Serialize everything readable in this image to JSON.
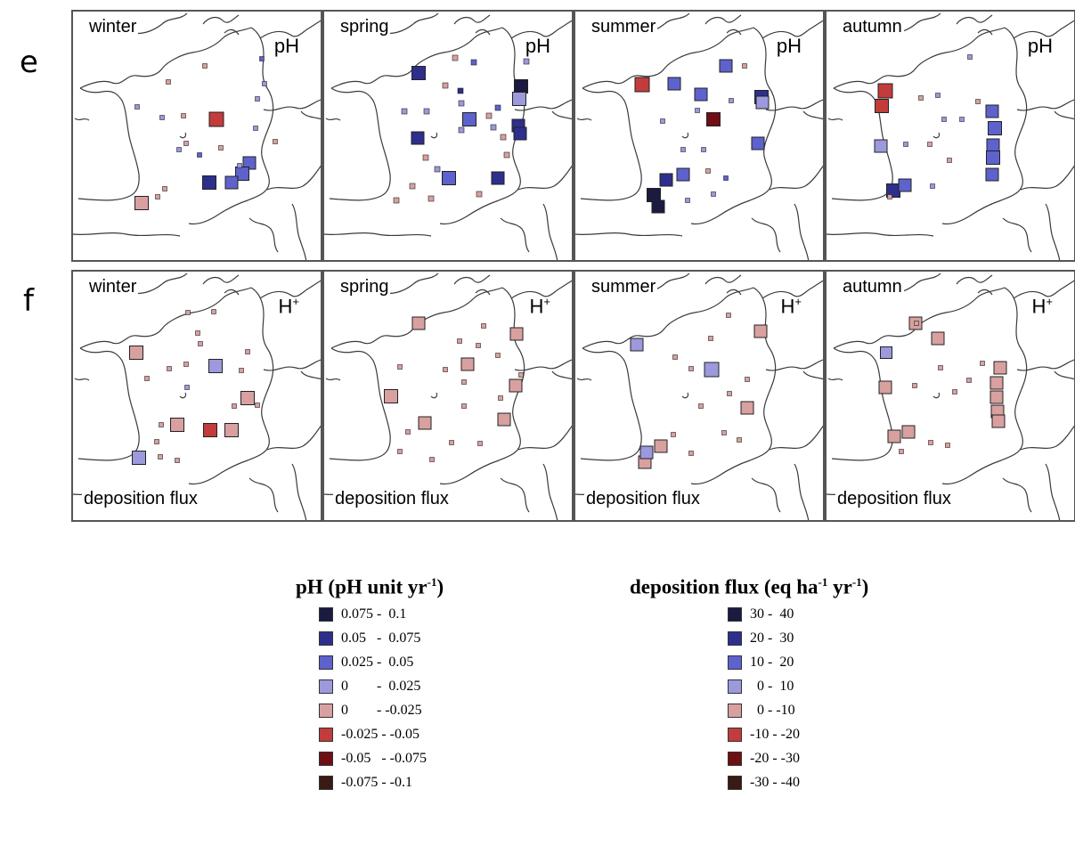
{
  "rows": [
    {
      "id": "e",
      "label": "e",
      "parameter": "pH",
      "parameter_sup": "",
      "footer": ""
    },
    {
      "id": "f",
      "label": "f",
      "parameter": "H",
      "parameter_sup": "+",
      "footer": "deposition flux"
    }
  ],
  "seasons": [
    "winter",
    "spring",
    "summer",
    "autumn"
  ],
  "colors": {
    "c0": "#1b1a40",
    "c1": "#2e2f8c",
    "c2": "#5d62cc",
    "c3": "#9c99dc",
    "c4": "#d9a0a0",
    "c5": "#c23c3c",
    "c6": "#6e0f14",
    "c7": "#3a1a14",
    "panel_border": "#555555",
    "coast": "#3a3a3a"
  },
  "legends": [
    {
      "title_pre": "pH (pH unit yr",
      "title_sup": "-1",
      "title_post": ")",
      "items": [
        "0.075 -  0.1",
        "0.05   -  0.075",
        "0.025 -  0.05",
        "0        -  0.025",
        "0        - -0.025",
        "-0.025 - -0.05",
        "-0.05   - -0.075",
        "-0.075 - -0.1"
      ]
    },
    {
      "title_pre": "deposition flux (eq ha",
      "title_sup": "-1",
      "title_mid": " yr",
      "title_sup2": "-1",
      "title_post": ")",
      "items": [
        "30 -  40",
        "20 -  30",
        "10 -  20",
        "  0 -  10",
        "  0 - -10",
        "-10 - -20",
        "-20 - -30",
        "-30 - -40"
      ]
    }
  ]
}
